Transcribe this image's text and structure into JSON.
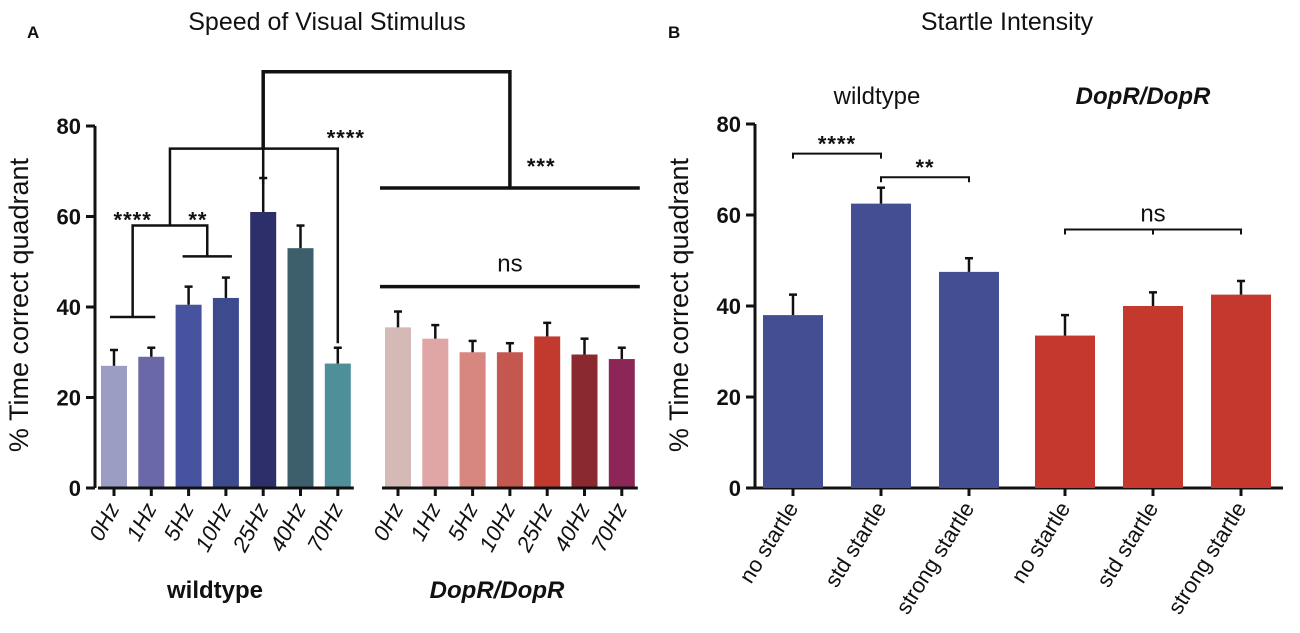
{
  "chart_data": [
    {
      "panel": "A",
      "type": "bar",
      "title": "Speed of Visual Stimulus",
      "ylabel": "% Time correct quadrant",
      "xlabel": "",
      "ylim": [
        0,
        80
      ],
      "yticks": [
        0,
        20,
        40,
        60,
        80
      ],
      "groups": [
        {
          "name": "wildtype",
          "categories": [
            "0Hz",
            "1Hz",
            "5Hz",
            "10Hz",
            "25Hz",
            "40Hz",
            "70Hz"
          ],
          "values": [
            27,
            29,
            40.5,
            42,
            61,
            53,
            27.5
          ],
          "errors": [
            3.5,
            2,
            4,
            4.5,
            7.5,
            5,
            3.5
          ],
          "colors": [
            "#9b9dc3",
            "#6a68a6",
            "#4853a0",
            "#3d4a8e",
            "#2d2f6b",
            "#3d5e6b",
            "#4e8f9a"
          ]
        },
        {
          "name": "DopR/DopR",
          "categories": [
            "0Hz",
            "1Hz",
            "5Hz",
            "10Hz",
            "25Hz",
            "40Hz",
            "70Hz"
          ],
          "values": [
            35.5,
            33,
            30,
            30,
            33.5,
            29.5,
            28.5
          ],
          "errors": [
            3.5,
            3,
            2.5,
            2,
            3,
            3.5,
            2.5
          ],
          "colors": [
            "#d5b9b7",
            "#e0a6a6",
            "#d88680",
            "#c4574f",
            "#c23a2e",
            "#8a2a30",
            "#8c2656"
          ]
        }
      ],
      "annotations": [
        "****",
        "**",
        "****",
        "***",
        "ns"
      ]
    },
    {
      "panel": "B",
      "type": "bar",
      "title": "Startle Intensity",
      "ylabel": "% Time correct quadrant",
      "xlabel": "",
      "ylim": [
        0,
        80
      ],
      "yticks": [
        0,
        20,
        40,
        60,
        80
      ],
      "groups": [
        {
          "name": "wildtype",
          "categories": [
            "no startle",
            "std startle",
            "strong startle"
          ],
          "values": [
            38,
            62.5,
            47.5
          ],
          "errors": [
            4.5,
            3.5,
            3
          ],
          "color": "#434f92"
        },
        {
          "name": "DopR/DopR",
          "categories": [
            "no startle",
            "std startle",
            "strong startle"
          ],
          "values": [
            33.5,
            40,
            42.5
          ],
          "errors": [
            4.5,
            3,
            3
          ],
          "color": "#c4382e"
        }
      ],
      "annotations": [
        "****",
        "**",
        "ns"
      ]
    }
  ]
}
